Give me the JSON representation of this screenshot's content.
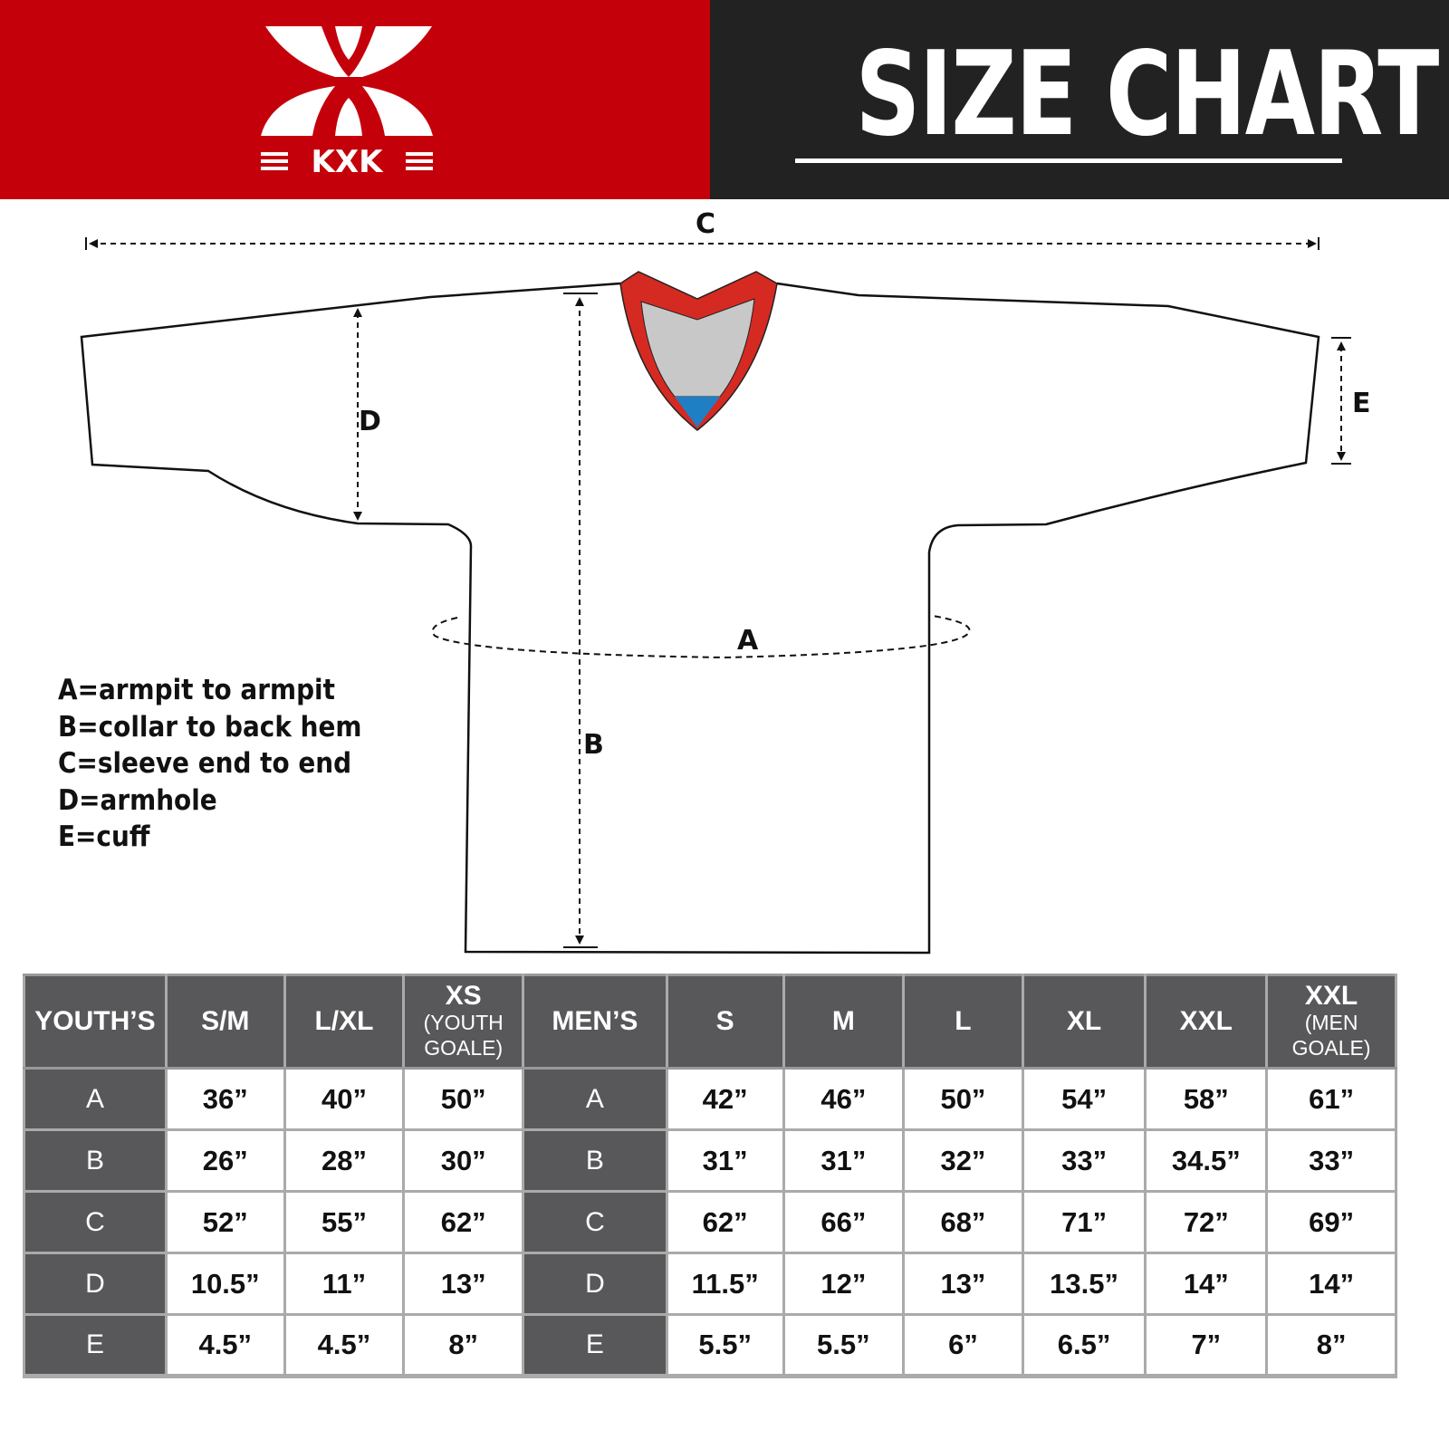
{
  "header": {
    "logo_text": "KXK",
    "title": "SIZE CHART",
    "colors": {
      "red": "#c4000a",
      "dark": "#222222"
    }
  },
  "diagram": {
    "labels": {
      "a": "A",
      "b": "B",
      "c": "C",
      "d": "D",
      "e": "E"
    }
  },
  "legend": [
    "A=armpit to armpit",
    "B=collar to back hem",
    "C=sleeve end to end",
    "D=armhole",
    "E=cuff"
  ],
  "table": {
    "youth_header": "YOUTH’S",
    "youth_sizes": [
      {
        "label": "S/M",
        "sub": ""
      },
      {
        "label": "L/XL",
        "sub": ""
      },
      {
        "label": "XS",
        "sub": "(YOUTH GOALE)"
      }
    ],
    "men_header": "MEN’S",
    "men_sizes": [
      {
        "label": "S",
        "sub": ""
      },
      {
        "label": "M",
        "sub": ""
      },
      {
        "label": "L",
        "sub": ""
      },
      {
        "label": "XL",
        "sub": ""
      },
      {
        "label": "XXL",
        "sub": ""
      },
      {
        "label": "XXL",
        "sub": "(MEN GOALE)"
      }
    ],
    "rows": [
      {
        "label": "A",
        "youth": [
          "36”",
          "40”",
          "50”"
        ],
        "men": [
          "42”",
          "46”",
          "50”",
          "54”",
          "58”",
          "61”"
        ]
      },
      {
        "label": "B",
        "youth": [
          "26”",
          "28”",
          "30”"
        ],
        "men": [
          "31”",
          "31”",
          "32”",
          "33”",
          "34.5”",
          "33”"
        ]
      },
      {
        "label": "C",
        "youth": [
          "52”",
          "55”",
          "62”"
        ],
        "men": [
          "62”",
          "66”",
          "68”",
          "71”",
          "72”",
          "69”"
        ]
      },
      {
        "label": "D",
        "youth": [
          "10.5”",
          "11”",
          "13”"
        ],
        "men": [
          "11.5”",
          "12”",
          "13”",
          "13.5”",
          "14”",
          "14”"
        ]
      },
      {
        "label": "E",
        "youth": [
          "4.5”",
          "4.5”",
          "8”"
        ],
        "men": [
          "5.5”",
          "5.5”",
          "6”",
          "6.5”",
          "7”",
          "8”"
        ]
      }
    ]
  }
}
